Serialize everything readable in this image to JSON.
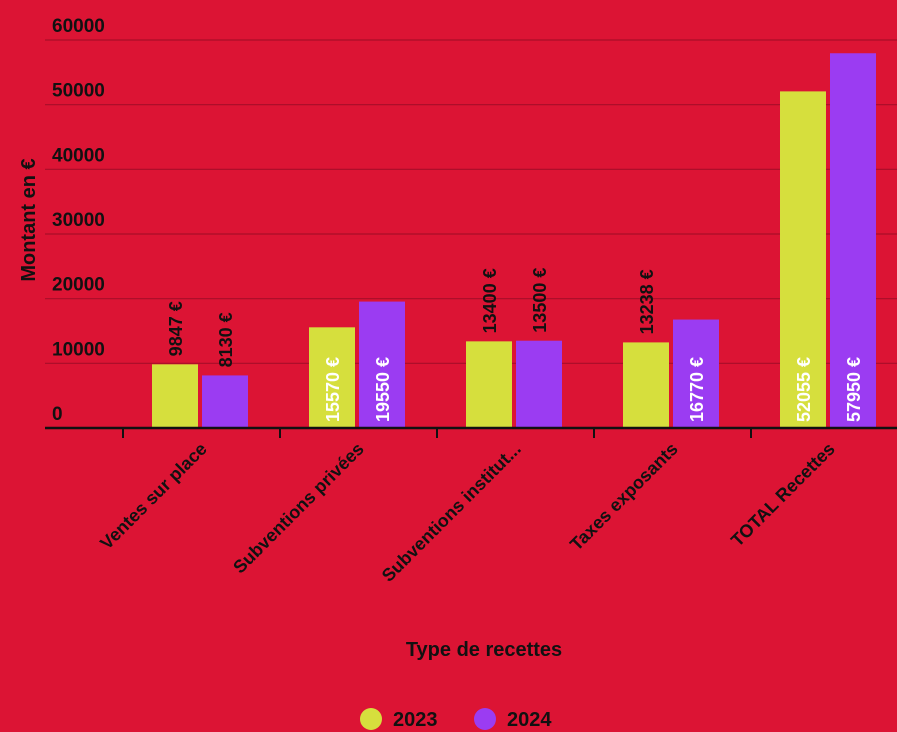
{
  "chart_data": {
    "type": "bar",
    "title": "",
    "xlabel": "Type de recettes",
    "ylabel": "Montant en €",
    "ylim": [
      0,
      60000
    ],
    "yticks": [
      0,
      10000,
      20000,
      30000,
      40000,
      50000,
      60000
    ],
    "grid": true,
    "legend_position": "bottom",
    "categories": [
      "Ventes sur place",
      "Subventions privées",
      "Subventions institut...",
      "Taxes exposants",
      "TOTAL Recettes"
    ],
    "series": [
      {
        "name": "2023",
        "color": "#d6df3d",
        "values": [
          9847,
          15570,
          13400,
          13238,
          52055
        ],
        "labels": [
          "9847 €",
          "15570 €",
          "13400 €",
          "13238 €",
          "52055 €"
        ],
        "label_position": [
          "outside",
          "inside",
          "outside",
          "outside",
          "inside"
        ]
      },
      {
        "name": "2024",
        "color": "#9b3cf2",
        "values": [
          8130,
          19550,
          13500,
          16770,
          57950
        ],
        "labels": [
          "8130 €",
          "19550 €",
          "13500 €",
          "16770 €",
          "57950 €"
        ],
        "label_position": [
          "outside",
          "inside",
          "outside",
          "inside",
          "inside"
        ]
      }
    ]
  },
  "colors": {
    "background": "#dc1434",
    "gridline": "#a80e28",
    "axis": "#111111",
    "text": "#111111",
    "inside_label": "#ffffff"
  }
}
